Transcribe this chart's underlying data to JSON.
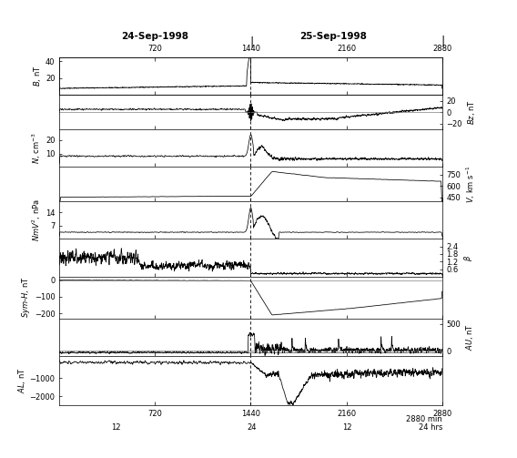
{
  "title_left": "24-Sep-1998",
  "title_right": "25-Sep-1998",
  "xmin": 0,
  "xmax": 2880,
  "xticks_shared": [
    720,
    1440,
    2160,
    2880
  ],
  "panels": [
    {
      "ylabel_left": "$B$, nT",
      "ylabel_right": "",
      "ylim": [
        0,
        45
      ],
      "yticks": [
        20,
        40
      ],
      "ytick_side": "left",
      "zero_line": false
    },
    {
      "ylabel_left": "",
      "ylabel_right": "$Bz$, nT",
      "ylim": [
        -30,
        30
      ],
      "yticks": [
        -20,
        0,
        20
      ],
      "ytick_side": "right",
      "zero_line": true
    },
    {
      "ylabel_left": "$N$, cm$^{-3}$",
      "ylabel_right": "",
      "ylim": [
        0,
        28
      ],
      "yticks": [
        10,
        20
      ],
      "ytick_side": "left",
      "zero_line": false
    },
    {
      "ylabel_left": "",
      "ylabel_right": "$V$, km s$^{-1}$",
      "ylim": [
        400,
        850
      ],
      "yticks": [
        450,
        600,
        750
      ],
      "ytick_side": "right",
      "zero_line": false
    },
    {
      "ylabel_left": "$NmV^2$, nPa",
      "ylabel_right": "",
      "ylim": [
        0,
        20
      ],
      "yticks": [
        7,
        14
      ],
      "ytick_side": "left",
      "zero_line": false
    },
    {
      "ylabel_left": "",
      "ylabel_right": "$\\beta$",
      "ylim": [
        0,
        3.0
      ],
      "yticks": [
        0.6,
        1.2,
        1.8,
        2.4
      ],
      "ytick_side": "right",
      "zero_line": false
    },
    {
      "ylabel_left": "$Sym$-$H$, nT",
      "ylabel_right": "",
      "ylim": [
        -230,
        20
      ],
      "yticks": [
        0,
        -100,
        -200
      ],
      "ytick_side": "left",
      "zero_line": true
    },
    {
      "ylabel_left": "",
      "ylabel_right": "$AU$, nT",
      "ylim": [
        -100,
        600
      ],
      "yticks": [
        0,
        500
      ],
      "ytick_side": "right",
      "zero_line": true
    },
    {
      "ylabel_left": "$AL$, nT",
      "ylabel_right": "",
      "ylim": [
        -2500,
        200
      ],
      "yticks": [
        -2000,
        -1000
      ],
      "ytick_side": "left",
      "zero_line": false
    }
  ],
  "vline_x": 1440,
  "background_color": "#ffffff",
  "line_color": "#000000",
  "heights": [
    1.0,
    0.9,
    1.0,
    0.9,
    1.0,
    1.0,
    1.1,
    1.0,
    1.3
  ]
}
